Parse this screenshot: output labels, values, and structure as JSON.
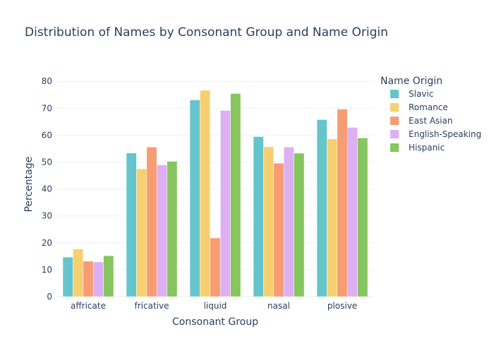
{
  "chart_data": {
    "type": "bar",
    "title": "Distribution of Names by Consonant Group and Name Origin",
    "xlabel": "Consonant Group",
    "ylabel": "Percentage",
    "categories": [
      "affricate",
      "fricative",
      "liquid",
      "nasal",
      "plosive"
    ],
    "ylim": [
      0,
      84
    ],
    "yticks": [
      0,
      10,
      20,
      30,
      40,
      50,
      60,
      70,
      80
    ],
    "grid": true,
    "legend": {
      "title": "Name Origin",
      "placement": "right"
    },
    "series": [
      {
        "name": "Slavic",
        "color": "#66c5cc",
        "values": [
          14.7,
          53.4,
          73.1,
          59.5,
          65.8
        ]
      },
      {
        "name": "Romance",
        "color": "#f6cf71",
        "values": [
          17.7,
          47.5,
          76.7,
          55.7,
          58.6
        ]
      },
      {
        "name": "East Asian",
        "color": "#f89c74",
        "values": [
          13.2,
          55.6,
          21.8,
          49.6,
          69.7
        ]
      },
      {
        "name": "English-Speaking",
        "color": "#dcb0f2",
        "values": [
          12.9,
          49.0,
          69.2,
          55.6,
          62.9
        ]
      },
      {
        "name": "Hispanic",
        "color": "#87c55f",
        "values": [
          15.2,
          50.3,
          75.5,
          53.3,
          59.0
        ]
      }
    ]
  }
}
